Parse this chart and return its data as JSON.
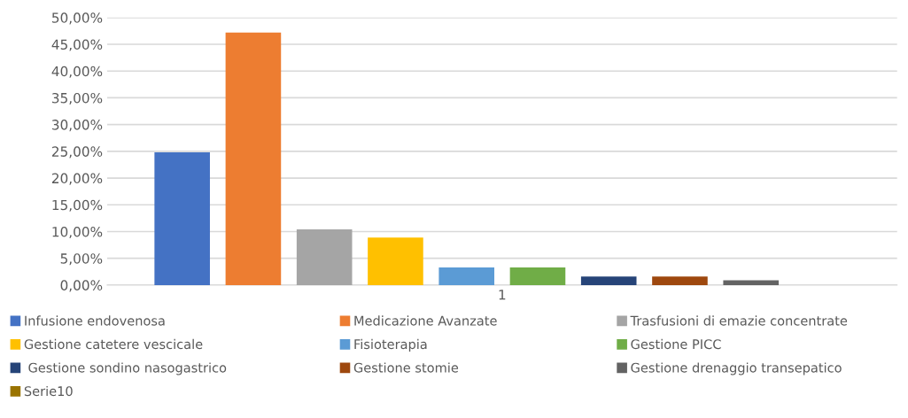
{
  "chart_data": {
    "type": "bar",
    "categories": [
      "1"
    ],
    "series": [
      {
        "name": "Infusione endovenosa",
        "color": "#4472c4",
        "values": [
          24.8
        ]
      },
      {
        "name": "Medicazione Avanzate",
        "color": "#ed7d31",
        "values": [
          47.2
        ]
      },
      {
        "name": "Trasfusioni di emazie concentrate",
        "color": "#a5a5a5",
        "values": [
          10.4
        ]
      },
      {
        "name": "Gestione catetere vescicale",
        "color": "#ffc000",
        "values": [
          8.9
        ]
      },
      {
        "name": "Fisioterapia",
        "color": "#5b9bd5",
        "values": [
          3.3
        ]
      },
      {
        "name": "Gestione PICC",
        "color": "#70ad47",
        "values": [
          3.3
        ]
      },
      {
        "name": " Gestione sondino nasogastrico",
        "color": "#264478",
        "values": [
          1.6
        ]
      },
      {
        "name": "Gestione stomie",
        "color": "#9e480e",
        "values": [
          1.6
        ]
      },
      {
        "name": "Gestione drenaggio transepatico",
        "color": "#636363",
        "values": [
          0.9
        ]
      },
      {
        "name": "Serie10",
        "color": "#997300",
        "values": [
          0
        ]
      }
    ],
    "ylim": [
      0,
      50
    ],
    "yticks": [
      {
        "value": 0,
        "label": "0,00%"
      },
      {
        "value": 5,
        "label": "5,00%"
      },
      {
        "value": 10,
        "label": "10,00%"
      },
      {
        "value": 15,
        "label": "15,00%"
      },
      {
        "value": 20,
        "label": "20,00%"
      },
      {
        "value": 25,
        "label": "25,00%"
      },
      {
        "value": 30,
        "label": "30,00%"
      },
      {
        "value": 35,
        "label": "35,00%"
      },
      {
        "value": 40,
        "label": "40,00%"
      },
      {
        "value": 45,
        "label": "45,00%"
      },
      {
        "value": 50,
        "label": "50,00%"
      }
    ],
    "grid": "y",
    "legend": "bottom"
  }
}
